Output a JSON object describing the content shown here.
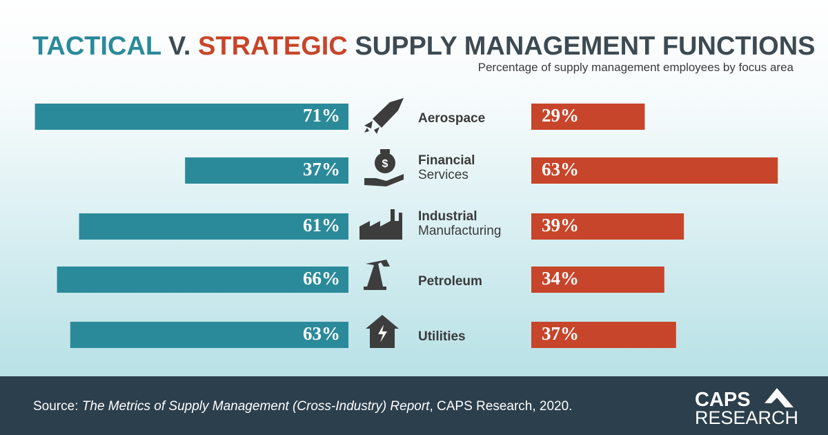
{
  "chart_data": {
    "type": "diverging-bar",
    "title": {
      "tactical": "TACTICAL",
      "versus": "V.",
      "strategic": "STRATEGIC",
      "rest": "SUPPLY MANAGEMENT FUNCTIONS"
    },
    "subtitle": "Percentage of supply management employees by focus area",
    "categories": [
      [
        "Aerospace"
      ],
      [
        "Financial",
        "Services"
      ],
      [
        "Industrial",
        "Manufacturing"
      ],
      [
        "Petroleum"
      ],
      [
        "Utilities"
      ]
    ],
    "series": [
      {
        "name": "Tactical",
        "color": "#2b8a9a",
        "values": [
          71,
          37,
          61,
          66,
          63
        ],
        "value_labels": [
          "71%",
          "37%",
          "61%",
          "66%",
          "63%"
        ]
      },
      {
        "name": "Strategic",
        "color": "#c7452a",
        "values": [
          29,
          63,
          39,
          34,
          37
        ],
        "value_labels": [
          "29%",
          "63%",
          "39%",
          "34%",
          "37%"
        ]
      }
    ],
    "source": {
      "label": "Source:",
      "title": "The Metrics of Supply Management (Cross-Industry) Report",
      "rest": ", CAPS Research, 2020."
    },
    "logo": {
      "line1": "CAPS",
      "line2": "RESEARCH"
    }
  }
}
